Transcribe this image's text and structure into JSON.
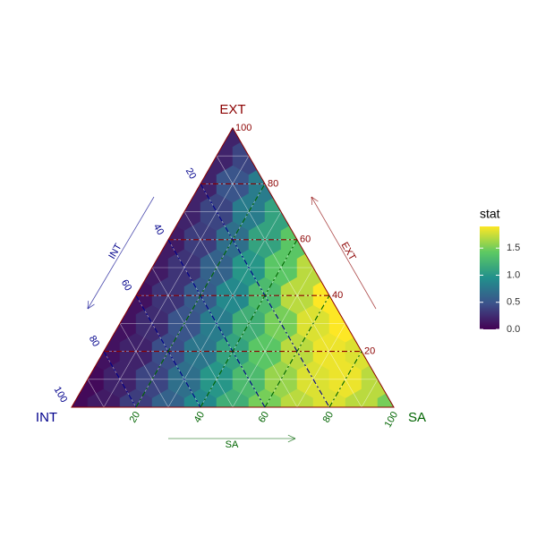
{
  "chart_data": {
    "type": "ternary-hexbin",
    "axes": [
      {
        "name": "EXT",
        "color": "#8b0000",
        "ticks": [
          20,
          40,
          60,
          80,
          100
        ]
      },
      {
        "name": "INT",
        "color": "#00008b",
        "ticks": [
          20,
          40,
          60,
          80,
          100
        ]
      },
      {
        "name": "SA",
        "color": "#006400",
        "ticks": [
          20,
          40,
          60,
          80,
          100
        ]
      }
    ],
    "grid_lines": [
      10,
      20,
      30,
      40,
      50,
      60,
      70,
      80,
      90
    ],
    "bins": {
      "sa": [
        0,
        10,
        20,
        30,
        40,
        50,
        60,
        70,
        80,
        90,
        100,
        0,
        10,
        20,
        30,
        40,
        50,
        60,
        70,
        80,
        90,
        0,
        10,
        20,
        30,
        40,
        50,
        60,
        70,
        80,
        0,
        10,
        20,
        30,
        40,
        50,
        60,
        70,
        0,
        10,
        20,
        30,
        40,
        50,
        60,
        0,
        10,
        20,
        30,
        40,
        50,
        0,
        10,
        20,
        30,
        40,
        0,
        10,
        20,
        30,
        0,
        10,
        20,
        0,
        10,
        0
      ],
      "ext": [
        0,
        0,
        0,
        0,
        0,
        0,
        0,
        0,
        0,
        0,
        0,
        10,
        10,
        10,
        10,
        10,
        10,
        10,
        10,
        10,
        10,
        20,
        20,
        20,
        20,
        20,
        20,
        20,
        20,
        20,
        30,
        30,
        30,
        30,
        30,
        30,
        30,
        30,
        40,
        40,
        40,
        40,
        40,
        40,
        40,
        50,
        50,
        50,
        50,
        50,
        50,
        60,
        60,
        60,
        60,
        60,
        70,
        70,
        70,
        70,
        80,
        80,
        80,
        90,
        90,
        100
      ],
      "stat": [
        0.05,
        0.15,
        0.35,
        0.6,
        0.9,
        1.2,
        1.5,
        1.7,
        1.8,
        1.7,
        1.5,
        0.05,
        0.2,
        0.4,
        0.7,
        1.0,
        1.3,
        1.6,
        1.8,
        1.85,
        1.7,
        0.1,
        0.2,
        0.45,
        0.75,
        1.1,
        1.4,
        1.7,
        1.85,
        1.8,
        0.1,
        0.25,
        0.5,
        0.8,
        1.2,
        1.5,
        1.8,
        1.9,
        0.1,
        0.3,
        0.55,
        0.9,
        1.3,
        1.7,
        1.9,
        0.15,
        0.3,
        0.6,
        1.0,
        1.4,
        1.7,
        0.15,
        0.35,
        0.7,
        1.1,
        1.4,
        0.2,
        0.4,
        0.8,
        1.1,
        0.2,
        0.5,
        0.8,
        0.2,
        0.4,
        0.2
      ]
    },
    "colormap": "viridis",
    "legend": {
      "title": "stat",
      "lim": [
        0,
        1.9
      ],
      "ticks": [
        {
          "value": 0,
          "label": "0.0"
        },
        {
          "value": 0.5,
          "label": "0.5"
        },
        {
          "value": 1,
          "label": "1.0"
        },
        {
          "value": 1.5,
          "label": "1.5"
        }
      ]
    }
  }
}
